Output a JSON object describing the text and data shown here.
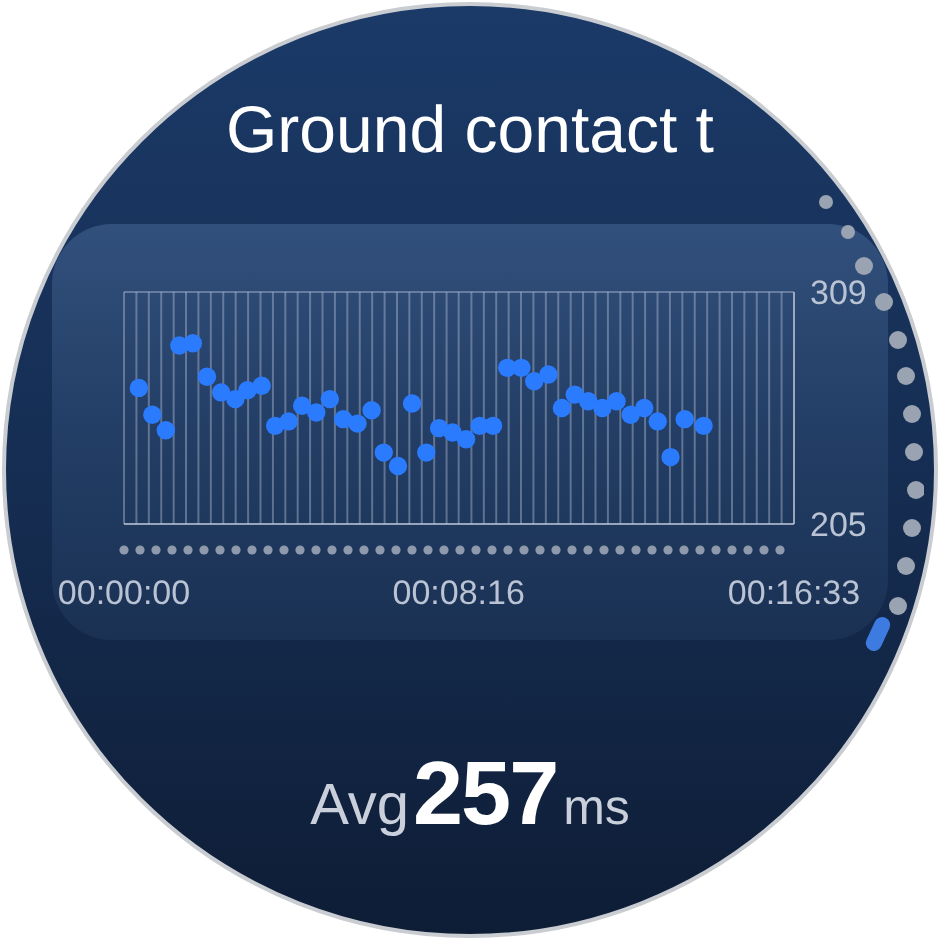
{
  "chart_data": {
    "type": "scatter",
    "title": "Ground contact t",
    "x": [
      22,
      42,
      62,
      82,
      102,
      123,
      144,
      165,
      183,
      204,
      224,
      244,
      264,
      285,
      305,
      325,
      346,
      367,
      385,
      406,
      427,
      448,
      467,
      487,
      507,
      527,
      547,
      568,
      589,
      608,
      629,
      649,
      668,
      688,
      709,
      730,
      751,
      771,
      791,
      810,
      831,
      859
    ],
    "values": [
      266,
      254,
      247,
      285,
      286,
      271,
      264,
      261,
      265,
      267,
      249,
      251,
      258,
      255,
      261,
      252,
      250,
      256,
      237,
      231,
      259,
      237,
      248,
      246,
      243,
      249,
      249,
      275,
      275,
      269,
      272,
      257,
      263,
      260,
      257,
      260,
      254,
      257,
      251,
      235,
      252,
      249
    ],
    "color": "#2b7bff",
    "marker": "circle",
    "xlim": [
      0,
      993
    ],
    "xticks": [
      {
        "value": 0,
        "label": "00:00:00"
      },
      {
        "value": 18.4,
        "label": null
      },
      {
        "value": 36.8,
        "label": null
      },
      {
        "value": 55.2,
        "label": null
      },
      {
        "value": 73.6,
        "label": null
      },
      {
        "value": 91.9,
        "label": null
      },
      {
        "value": 110.3,
        "label": null
      },
      {
        "value": 128.7,
        "label": null
      },
      {
        "value": 147.1,
        "label": null
      },
      {
        "value": 165.5,
        "label": null
      },
      {
        "value": 183.9,
        "label": null
      },
      {
        "value": 202.3,
        "label": null
      },
      {
        "value": 220.7,
        "label": null
      },
      {
        "value": 239.1,
        "label": null
      },
      {
        "value": 257.4,
        "label": null
      },
      {
        "value": 275.8,
        "label": null
      },
      {
        "value": 294.2,
        "label": null
      },
      {
        "value": 312.6,
        "label": null
      },
      {
        "value": 331,
        "label": null
      },
      {
        "value": 349.4,
        "label": null
      },
      {
        "value": 367.8,
        "label": null
      },
      {
        "value": 386.2,
        "label": null
      },
      {
        "value": 404.6,
        "label": null
      },
      {
        "value": 422.9,
        "label": null
      },
      {
        "value": 441.3,
        "label": null
      },
      {
        "value": 459.7,
        "label": null
      },
      {
        "value": 478.1,
        "label": null
      },
      {
        "value": 496,
        "label": "00:08:16"
      },
      {
        "value": 514.9,
        "label": null
      },
      {
        "value": 533.3,
        "label": null
      },
      {
        "value": 551.7,
        "label": null
      },
      {
        "value": 570.1,
        "label": null
      },
      {
        "value": 588.4,
        "label": null
      },
      {
        "value": 606.8,
        "label": null
      },
      {
        "value": 625.2,
        "label": null
      },
      {
        "value": 643.6,
        "label": null
      },
      {
        "value": 662,
        "label": null
      },
      {
        "value": 680.4,
        "label": null
      },
      {
        "value": 698.8,
        "label": null
      },
      {
        "value": 717.2,
        "label": null
      },
      {
        "value": 735.6,
        "label": null
      },
      {
        "value": 753.9,
        "label": null
      },
      {
        "value": 772.3,
        "label": null
      },
      {
        "value": 790.7,
        "label": null
      },
      {
        "value": 809.1,
        "label": null
      },
      {
        "value": 827.5,
        "label": null
      },
      {
        "value": 845.9,
        "label": null
      },
      {
        "value": 864.3,
        "label": null
      },
      {
        "value": 882.7,
        "label": null
      },
      {
        "value": 901.1,
        "label": null
      },
      {
        "value": 919.4,
        "label": null
      },
      {
        "value": 937.8,
        "label": null
      },
      {
        "value": 956.2,
        "label": null
      },
      {
        "value": 974.6,
        "label": null
      },
      {
        "value": 993,
        "label": "00:16:33"
      }
    ],
    "ylim": [
      205,
      309
    ],
    "yticks": [
      205,
      309
    ],
    "grid": true,
    "annotations": [
      "Avg257ms"
    ]
  }
}
